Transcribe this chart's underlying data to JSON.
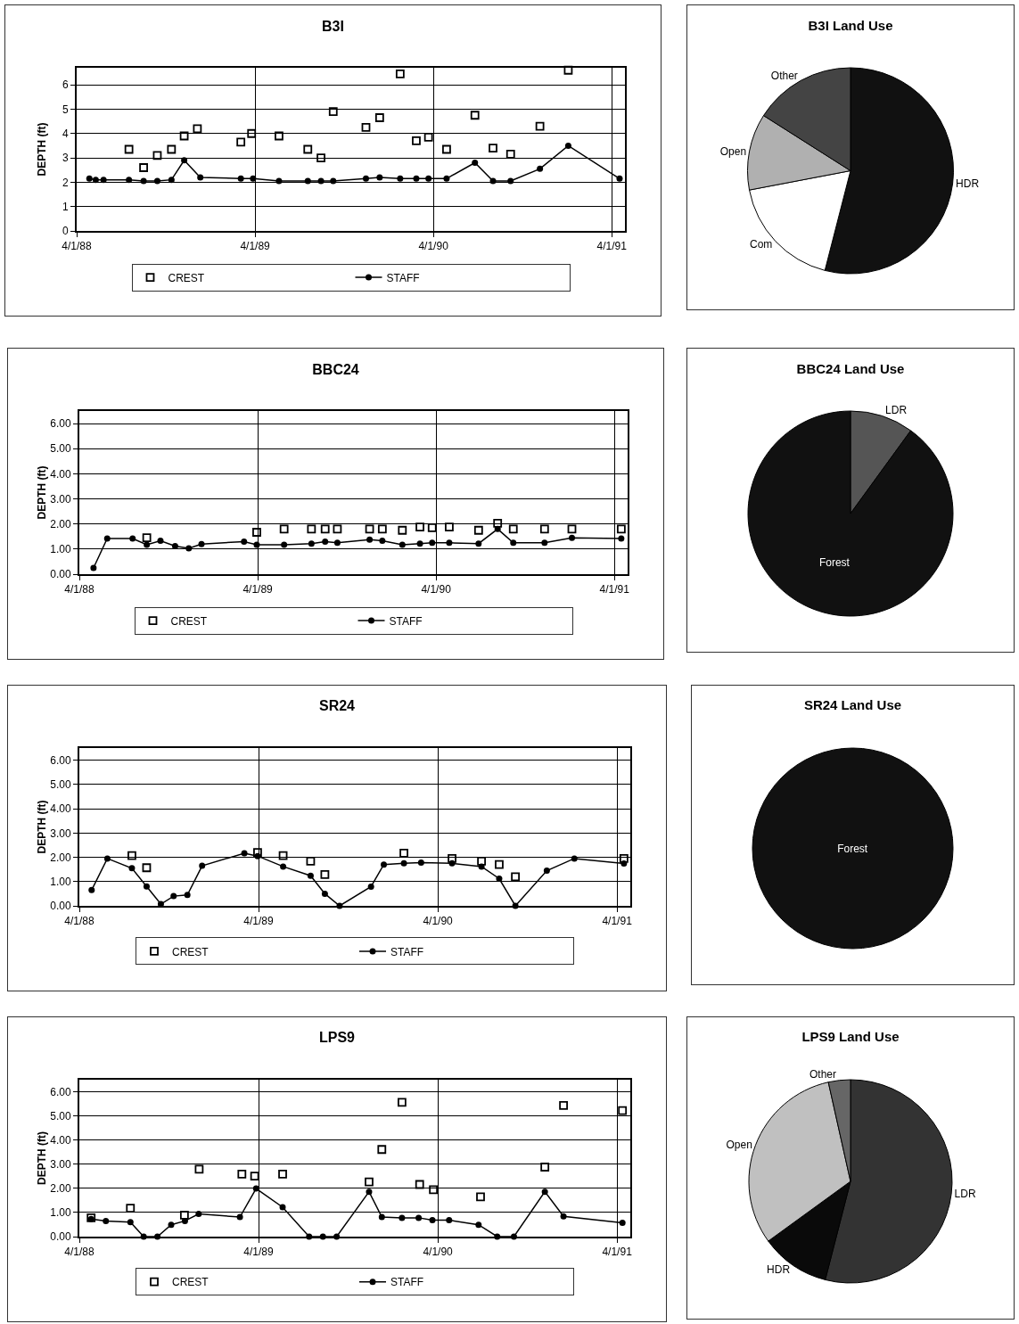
{
  "chart_data": [
    {
      "type": "line",
      "title": "B3I",
      "ylabel": "DEPTH (ft)",
      "xlim": [
        "1988-04-01",
        "1991-04-28"
      ],
      "ylim": [
        0,
        6.7
      ],
      "yticks": [
        0,
        1,
        2,
        3,
        4,
        5,
        6
      ],
      "xticks": [
        {
          "value": "1988-04-01",
          "label": "4/1/88"
        },
        {
          "value": "1989-04-01",
          "label": "4/1/89"
        },
        {
          "value": "1990-04-01",
          "label": "4/1/90"
        },
        {
          "value": "1991-04-01",
          "label": "4/1/91"
        }
      ],
      "grid": true,
      "legend": "bottom",
      "series": [
        {
          "name": "CREST",
          "type": "scatter",
          "marker": "square",
          "color": "#000000",
          "x": [
            "1988-07-17",
            "1988-08-16",
            "1988-09-13",
            "1988-10-12",
            "1988-11-07",
            "1988-12-04",
            "1989-03-03",
            "1989-03-25",
            "1989-05-20",
            "1989-07-18",
            "1989-08-14",
            "1989-09-08",
            "1989-11-14",
            "1989-12-12",
            "1990-01-23",
            "1990-02-25",
            "1990-03-22",
            "1990-04-28",
            "1990-06-25",
            "1990-08-01",
            "1990-09-06",
            "1990-11-05",
            "1991-01-02"
          ],
          "values": [
            3.35,
            2.6,
            3.1,
            3.35,
            3.9,
            4.2,
            3.65,
            4.0,
            3.9,
            3.35,
            3.0,
            4.9,
            4.25,
            4.65,
            6.45,
            3.7,
            3.85,
            3.35,
            4.75,
            3.4,
            3.15,
            4.3,
            6.6
          ]
        },
        {
          "name": "STAFF",
          "type": "line",
          "marker": "circle",
          "color": "#000000",
          "x": [
            "1988-04-27",
            "1988-05-10",
            "1988-05-26",
            "1988-07-17",
            "1988-08-16",
            "1988-09-13",
            "1988-10-12",
            "1988-11-07",
            "1988-12-10",
            "1989-03-03",
            "1989-03-28",
            "1989-05-20",
            "1989-07-18",
            "1989-08-14",
            "1989-09-08",
            "1989-11-14",
            "1989-12-12",
            "1990-01-23",
            "1990-02-25",
            "1990-03-22",
            "1990-04-28",
            "1990-06-25",
            "1990-08-01",
            "1990-09-06",
            "1990-11-05",
            "1991-01-02",
            "1991-04-17"
          ],
          "values": [
            2.15,
            2.1,
            2.1,
            2.1,
            2.05,
            2.05,
            2.1,
            2.9,
            2.2,
            2.15,
            2.15,
            2.05,
            2.05,
            2.05,
            2.05,
            2.15,
            2.2,
            2.15,
            2.15,
            2.15,
            2.15,
            2.8,
            2.05,
            2.05,
            2.55,
            3.5,
            2.15
          ]
        }
      ]
    },
    {
      "type": "pie",
      "title": "B3I Land Use",
      "categories": [
        "HDR",
        "Com",
        "Open",
        "Other"
      ],
      "values": [
        54,
        18,
        12,
        16
      ],
      "colors": [
        "#111111",
        "#ffffff",
        "#b0b0b0",
        "#444444"
      ]
    },
    {
      "type": "line",
      "title": "BBC24",
      "ylabel": "DEPTH (ft)",
      "xlim": [
        "1988-04-01",
        "1991-04-28"
      ],
      "ylim": [
        0,
        6.5
      ],
      "yticks": [
        {
          "value": 0,
          "label": "0.00"
        },
        {
          "value": 1,
          "label": "1.00"
        },
        {
          "value": 2,
          "label": "2.00"
        },
        {
          "value": 3,
          "label": "3.00"
        },
        {
          "value": 4,
          "label": "4.00"
        },
        {
          "value": 5,
          "label": "5.00"
        },
        {
          "value": 6,
          "label": "6.00"
        }
      ],
      "xticks": [
        {
          "value": "1988-04-01",
          "label": "4/1/88"
        },
        {
          "value": "1989-04-01",
          "label": "4/1/89"
        },
        {
          "value": "1990-04-01",
          "label": "4/1/90"
        },
        {
          "value": "1991-04-01",
          "label": "4/1/91"
        }
      ],
      "grid": true,
      "legend": "bottom",
      "series": [
        {
          "name": "CREST",
          "type": "scatter",
          "marker": "square",
          "color": "#000000",
          "x": [
            "1988-08-17",
            "1989-03-30",
            "1989-05-25",
            "1989-07-20",
            "1989-08-17",
            "1989-09-11",
            "1989-11-16",
            "1989-12-12",
            "1990-01-22",
            "1990-02-27",
            "1990-03-24",
            "1990-04-28",
            "1990-06-27",
            "1990-08-05",
            "1990-09-06",
            "1990-11-09",
            "1991-01-04",
            "1991-04-15"
          ],
          "values": [
            1.45,
            1.67,
            1.8,
            1.8,
            1.8,
            1.8,
            1.8,
            1.8,
            1.75,
            1.88,
            1.85,
            1.88,
            1.75,
            2.03,
            1.8,
            1.8,
            1.8,
            1.8
          ]
        },
        {
          "name": "STAFF",
          "type": "line",
          "marker": "circle",
          "color": "#000000",
          "x": [
            "1988-04-30",
            "1988-05-28",
            "1988-07-19",
            "1988-08-17",
            "1988-09-14",
            "1988-10-14",
            "1988-11-11",
            "1988-12-07",
            "1989-03-04",
            "1989-03-30",
            "1989-05-25",
            "1989-07-20",
            "1989-08-17",
            "1989-09-11",
            "1989-11-16",
            "1989-12-12",
            "1990-01-22",
            "1990-02-27",
            "1990-03-24",
            "1990-04-28",
            "1990-06-27",
            "1990-08-05",
            "1990-09-06",
            "1990-11-09",
            "1991-01-04",
            "1991-04-15"
          ],
          "values": [
            0.25,
            1.42,
            1.42,
            1.17,
            1.33,
            1.12,
            1.03,
            1.2,
            1.3,
            1.17,
            1.17,
            1.22,
            1.3,
            1.25,
            1.38,
            1.33,
            1.17,
            1.22,
            1.25,
            1.25,
            1.22,
            1.8,
            1.25,
            1.25,
            1.45,
            1.42
          ]
        }
      ]
    },
    {
      "type": "pie",
      "title": "BBC24 Land Use",
      "categories": [
        "LDR",
        "Forest"
      ],
      "values": [
        10,
        90
      ],
      "colors": [
        "#555555",
        "#111111"
      ]
    },
    {
      "type": "line",
      "title": "SR24",
      "ylabel": "DEPTH (ft)",
      "xlim": [
        "1988-04-01",
        "1991-04-28"
      ],
      "ylim": [
        0,
        6.5
      ],
      "yticks": [
        {
          "value": 0,
          "label": "0.00"
        },
        {
          "value": 1,
          "label": "1.00"
        },
        {
          "value": 2,
          "label": "2.00"
        },
        {
          "value": 3,
          "label": "3.00"
        },
        {
          "value": 4,
          "label": "4.00"
        },
        {
          "value": 5,
          "label": "5.00"
        },
        {
          "value": 6,
          "label": "6.00"
        }
      ],
      "xticks": [
        {
          "value": "1988-04-01",
          "label": "4/1/88"
        },
        {
          "value": "1989-04-01",
          "label": "4/1/89"
        },
        {
          "value": "1990-04-01",
          "label": "4/1/90"
        },
        {
          "value": "1991-04-01",
          "label": "4/1/91"
        }
      ],
      "grid": true,
      "legend": "bottom",
      "series": [
        {
          "name": "CREST",
          "type": "scatter",
          "marker": "square",
          "color": "#000000",
          "x": [
            "1988-07-17",
            "1988-08-16",
            "1989-03-30",
            "1989-05-21",
            "1989-07-16",
            "1989-08-14",
            "1990-01-22",
            "1990-04-30",
            "1990-06-29",
            "1990-08-04",
            "1990-09-06",
            "1991-04-15"
          ],
          "values": [
            2.07,
            1.57,
            2.2,
            2.07,
            1.84,
            1.29,
            2.17,
            1.95,
            1.84,
            1.7,
            1.2,
            1.95
          ]
        },
        {
          "name": "STAFF",
          "type": "line",
          "marker": "circle",
          "color": "#000000",
          "x": [
            "1988-04-26",
            "1988-05-28",
            "1988-07-17",
            "1988-08-16",
            "1988-09-14",
            "1988-10-10",
            "1988-11-07",
            "1988-12-07",
            "1989-03-03",
            "1989-03-30",
            "1989-05-21",
            "1989-07-16",
            "1989-08-14",
            "1989-09-13",
            "1989-11-16",
            "1989-12-12",
            "1990-01-22",
            "1990-02-26",
            "1990-04-30",
            "1990-06-29",
            "1990-08-04",
            "1990-09-06",
            "1990-11-09",
            "1991-01-04",
            "1991-04-15"
          ],
          "values": [
            0.65,
            1.95,
            1.55,
            0.8,
            0.07,
            0.4,
            0.45,
            1.65,
            2.17,
            2.05,
            1.62,
            1.24,
            0.5,
            0,
            0.79,
            1.7,
            1.75,
            1.78,
            1.75,
            1.62,
            1.12,
            0,
            1.45,
            1.95,
            1.74
          ]
        }
      ]
    },
    {
      "type": "pie",
      "title": "SR24 Land Use",
      "categories": [
        "Forest"
      ],
      "values": [
        100
      ],
      "colors": [
        "#111111"
      ]
    },
    {
      "type": "line",
      "title": "LPS9",
      "ylabel": "DEPTH (ft)",
      "xlim": [
        "1988-04-01",
        "1991-04-28"
      ],
      "ylim": [
        0,
        6.5
      ],
      "yticks": [
        {
          "value": 0,
          "label": "0.00"
        },
        {
          "value": 1,
          "label": "1.00"
        },
        {
          "value": 2,
          "label": "2.00"
        },
        {
          "value": 3,
          "label": "3.00"
        },
        {
          "value": 4,
          "label": "4.00"
        },
        {
          "value": 5,
          "label": "5.00"
        },
        {
          "value": 6,
          "label": "6.00"
        }
      ],
      "xticks": [
        {
          "value": "1988-04-01",
          "label": "4/1/88"
        },
        {
          "value": "1989-04-01",
          "label": "4/1/89"
        },
        {
          "value": "1990-04-01",
          "label": "4/1/90"
        },
        {
          "value": "1991-04-01",
          "label": "4/1/91"
        }
      ],
      "grid": true,
      "legend": "bottom",
      "series": [
        {
          "name": "CREST",
          "type": "scatter",
          "marker": "square",
          "color": "#000000",
          "x": [
            "1988-04-25",
            "1988-07-14",
            "1988-11-01",
            "1988-12-01",
            "1989-02-26",
            "1989-03-24",
            "1989-05-20",
            "1989-11-12",
            "1989-12-08",
            "1990-01-18",
            "1990-02-23",
            "1990-03-23",
            "1990-06-27",
            "1990-11-05",
            "1990-12-13",
            "1991-04-12"
          ],
          "values": [
            0.78,
            1.18,
            0.89,
            2.79,
            2.59,
            2.51,
            2.59,
            2.27,
            3.61,
            5.56,
            2.16,
            1.94,
            1.65,
            2.88,
            5.43,
            5.22
          ]
        },
        {
          "name": "STAFF",
          "type": "line",
          "marker": "circle",
          "color": "#000000",
          "x": [
            "1988-04-25",
            "1988-05-25",
            "1988-07-14",
            "1988-08-10",
            "1988-09-07",
            "1988-10-05",
            "1988-11-02",
            "1988-11-30",
            "1989-02-22",
            "1989-03-27",
            "1989-05-20",
            "1989-07-13",
            "1989-08-10",
            "1989-09-07",
            "1989-11-12",
            "1989-12-08",
            "1990-01-18",
            "1990-02-21",
            "1990-03-21",
            "1990-04-24",
            "1990-06-23",
            "1990-07-31",
            "1990-09-03",
            "1990-11-05",
            "1990-12-13",
            "1991-04-12"
          ],
          "values": [
            0.73,
            0.65,
            0.6,
            0,
            0,
            0.49,
            0.65,
            0.94,
            0.81,
            1.99,
            1.22,
            0,
            0,
            0,
            1.86,
            0.81,
            0.78,
            0.78,
            0.68,
            0.68,
            0.49,
            0,
            0,
            1.86,
            0.84,
            0.57
          ]
        }
      ]
    },
    {
      "type": "pie",
      "title": "LPS9 Land Use",
      "categories": [
        "LDR",
        "HDR",
        "Open",
        "Other"
      ],
      "values": [
        54,
        11,
        31.5,
        3.5
      ],
      "colors": [
        "#333333",
        "#0a0a0a",
        "#c0c0c0",
        "#666666"
      ]
    }
  ]
}
